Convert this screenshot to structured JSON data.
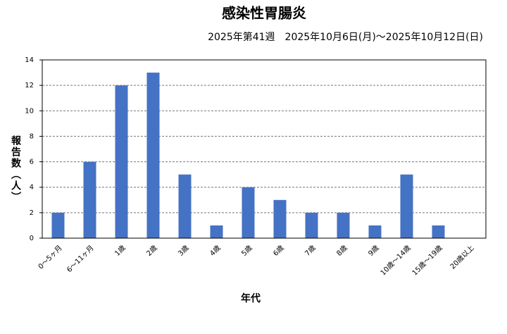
{
  "chart_data": {
    "type": "bar",
    "title": "感染性胃腸炎",
    "subtitle": "2025年第41週　2025年10月6日(月)～2025年10月12日(日)",
    "x_label": "年代",
    "y_label": "報告数（人）",
    "categories": [
      "0～5ヶ月",
      "6～11ヶ月",
      "1歳",
      "2歳",
      "3歳",
      "4歳",
      "5歳",
      "6歳",
      "7歳",
      "8歳",
      "9歳",
      "10歳～14歳",
      "15歳～19歳",
      "20歳以上"
    ],
    "values": [
      2,
      6,
      12,
      13,
      5,
      1,
      4,
      3,
      2,
      2,
      1,
      5,
      1,
      0
    ],
    "color": "#4472c4",
    "ylim": [
      0,
      14
    ],
    "yticks": [
      0,
      2,
      4,
      6,
      8,
      10,
      12,
      14
    ],
    "grid": true
  }
}
